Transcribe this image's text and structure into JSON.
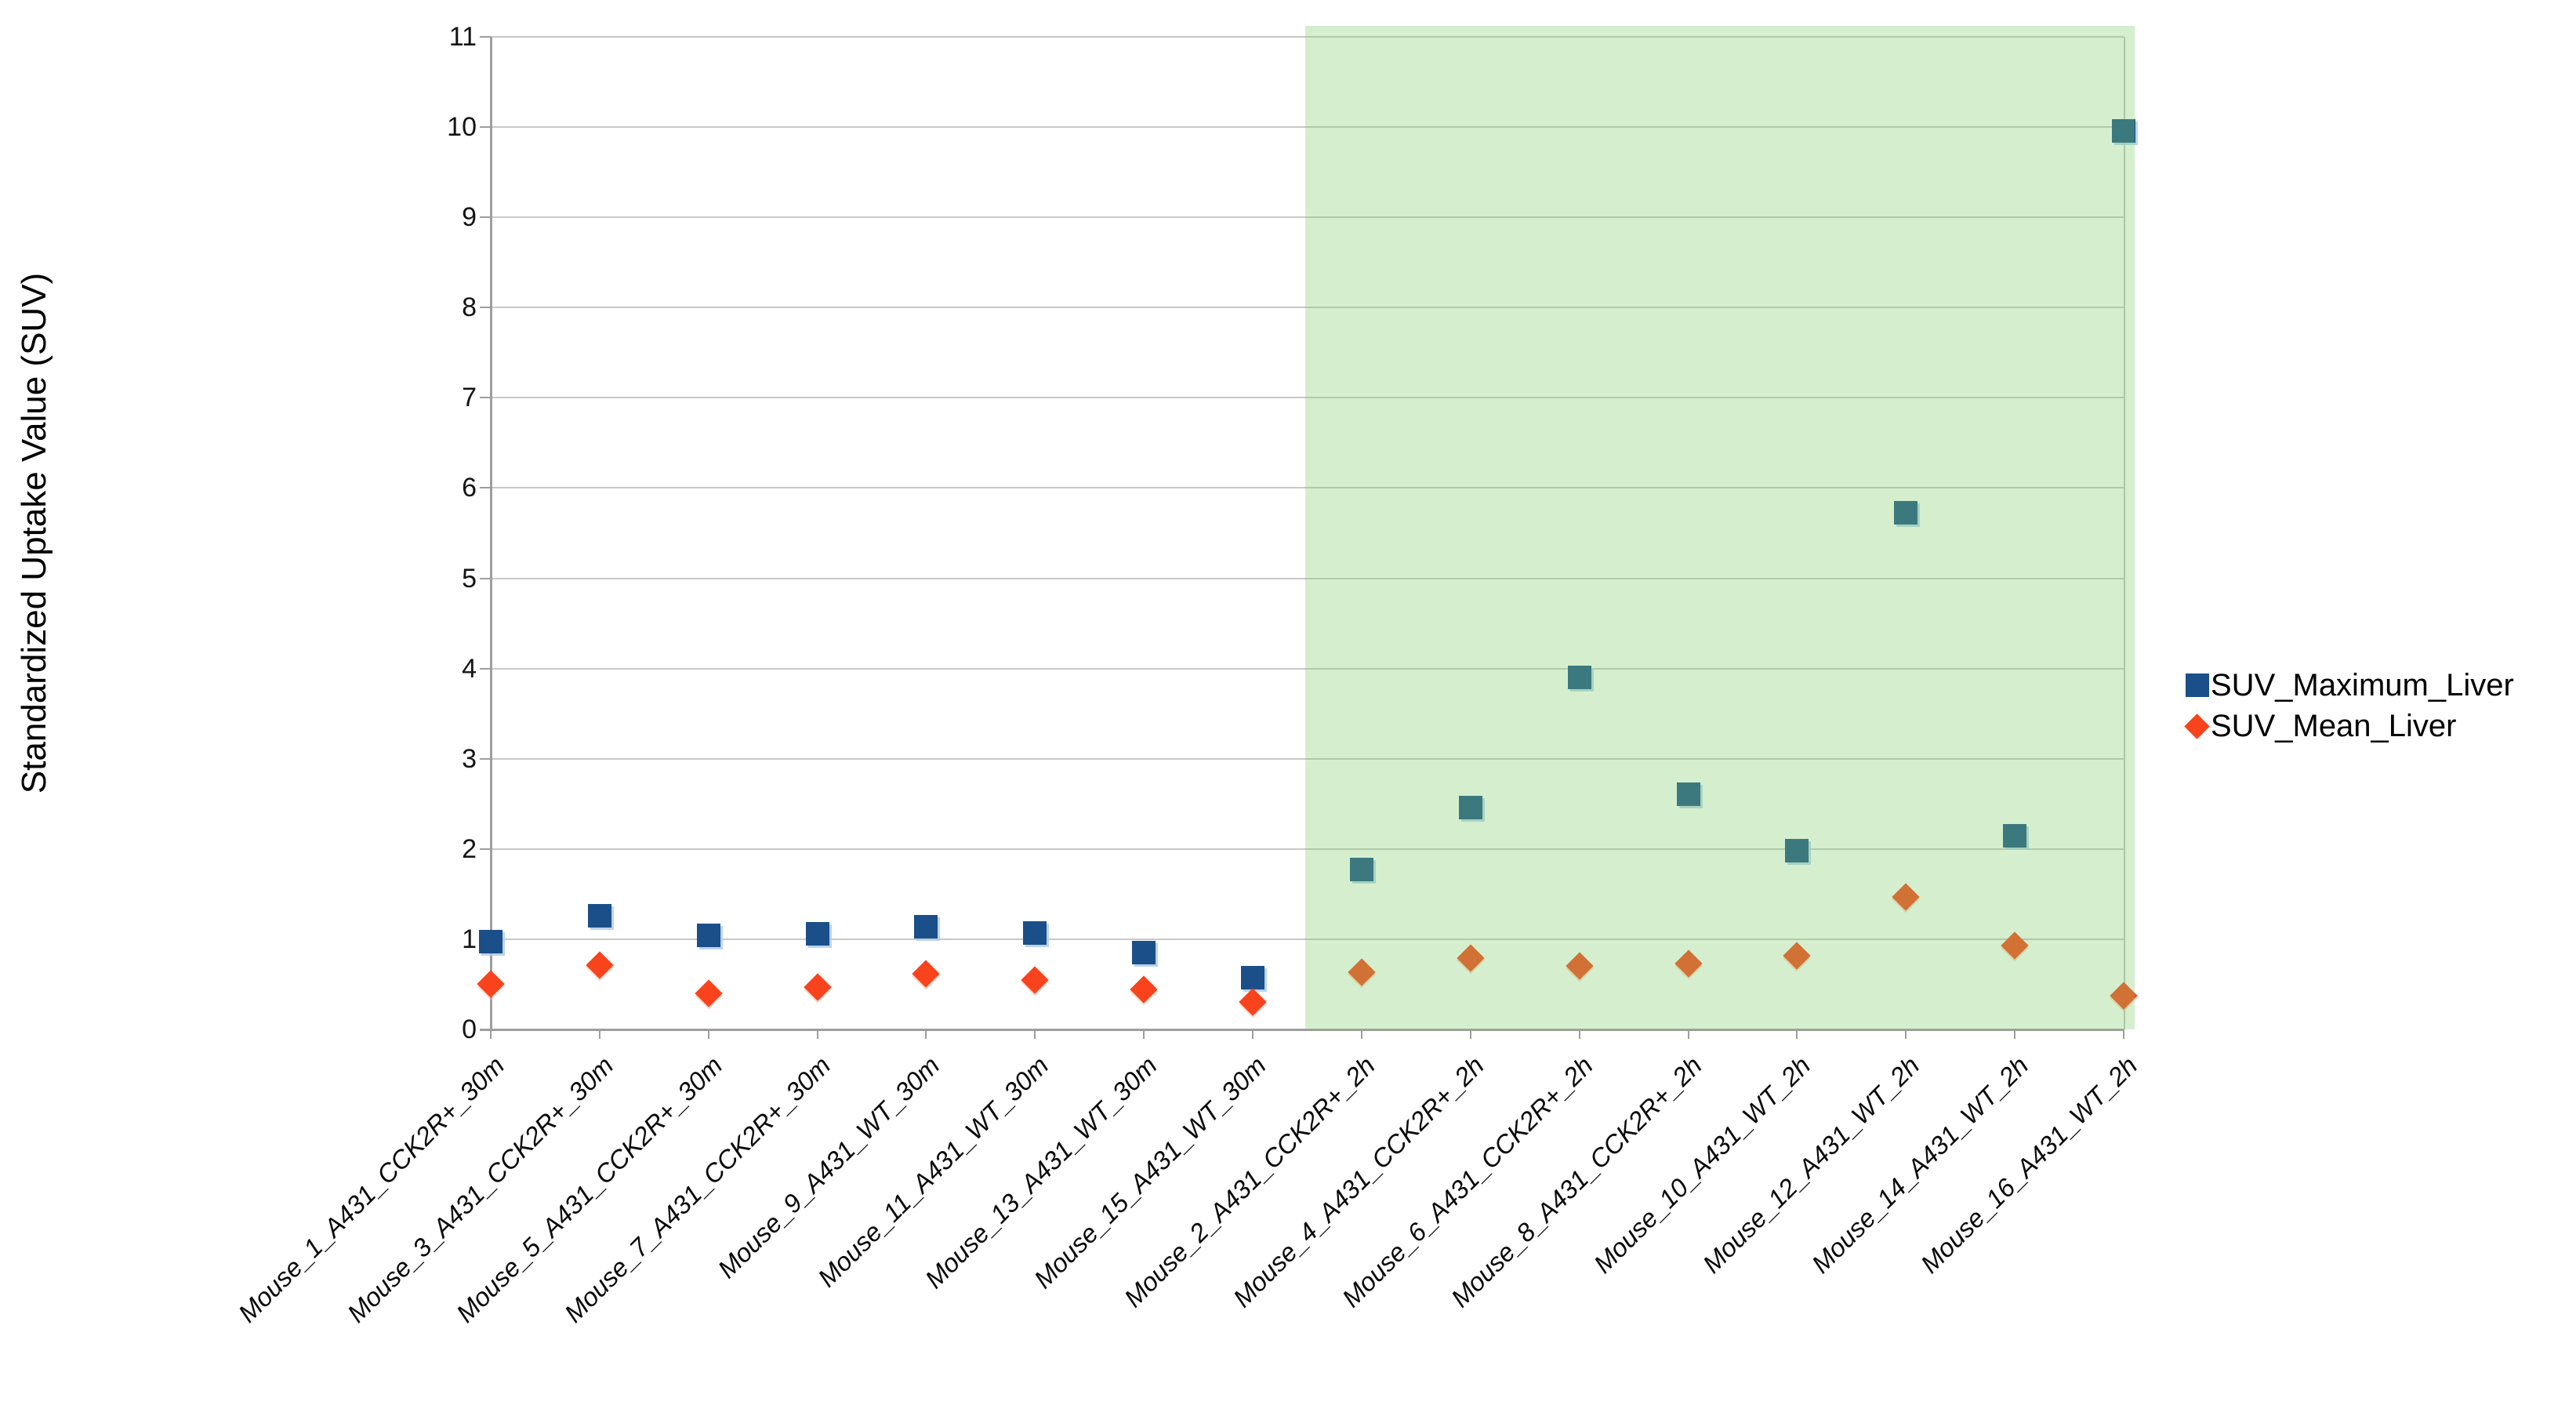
{
  "y_axis": {
    "title": "Standardized Uptake Value (SUV)",
    "min": 0,
    "max": 11,
    "tick_step": 1,
    "tick_labels": [
      "0",
      "1",
      "2",
      "3",
      "4",
      "5",
      "6",
      "7",
      "8",
      "9",
      "10",
      "11"
    ]
  },
  "x_axis": {
    "categories": [
      "Mouse_1_A431_CCK2R+_30m",
      "Mouse_3_A431_CCK2R+_30m",
      "Mouse_5_A431_CCK2R+_30m",
      "Mouse_7_A431_CCK2R+_30m",
      "Mouse_9_A431_WT_30m",
      "Mouse_11_A431_WT_30m",
      "Mouse_13_A431_WT_30m",
      "Mouse_15_A431_WT_30m",
      "Mouse_2_A431_CCK2R+_2h",
      "Mouse_4_A431_CCK2R+_2h",
      "Mouse_6_A431_CCK2R+_2h",
      "Mouse_8_A431_CCK2R+_2h",
      "Mouse_10_A431_WT_2h",
      "Mouse_12_A431_WT_2h",
      "Mouse_14_A431_WT_2h",
      "Mouse_16_A431_WT_2h"
    ]
  },
  "legend": {
    "position": "right",
    "items": [
      {
        "label": "SUV_Maximum_Liver",
        "marker": "square",
        "color": "#1b4f8a"
      },
      {
        "label": "SUV_Mean_Liver",
        "marker": "diamond",
        "color": "#f9431c"
      }
    ]
  },
  "highlight_band": {
    "covers_categories": [
      "Mouse_2_A431_CCK2R+_2h",
      "Mouse_4_A431_CCK2R+_2h",
      "Mouse_6_A431_CCK2R+_2h",
      "Mouse_8_A431_CCK2R+_2h",
      "Mouse_10_A431_WT_2h",
      "Mouse_12_A431_WT_2h",
      "Mouse_14_A431_WT_2h",
      "Mouse_16_A431_WT_2h"
    ],
    "color": "#80ce6a",
    "opacity": 0.33
  },
  "chart_data": {
    "type": "scatter",
    "title": "",
    "xlabel": "",
    "ylabel": "Standardized Uptake Value (SUV)",
    "ylim": [
      0,
      11
    ],
    "grid": true,
    "legend_position": "right",
    "categories": [
      "Mouse_1_A431_CCK2R+_30m",
      "Mouse_3_A431_CCK2R+_30m",
      "Mouse_5_A431_CCK2R+_30m",
      "Mouse_7_A431_CCK2R+_30m",
      "Mouse_9_A431_WT_30m",
      "Mouse_11_A431_WT_30m",
      "Mouse_13_A431_WT_30m",
      "Mouse_15_A431_WT_30m",
      "Mouse_2_A431_CCK2R+_2h",
      "Mouse_4_A431_CCK2R+_2h",
      "Mouse_6_A431_CCK2R+_2h",
      "Mouse_8_A431_CCK2R+_2h",
      "Mouse_10_A431_WT_2h",
      "Mouse_12_A431_WT_2h",
      "Mouse_14_A431_WT_2h",
      "Mouse_16_A431_WT_2h"
    ],
    "series": [
      {
        "name": "SUV_Maximum_Liver",
        "marker": "square",
        "color": "#1b4f8a",
        "values": [
          0.97,
          1.26,
          1.04,
          1.06,
          1.14,
          1.07,
          0.85,
          0.57,
          1.77,
          2.46,
          3.9,
          2.61,
          1.98,
          5.73,
          2.15,
          9.96
        ]
      },
      {
        "name": "SUV_Mean_Liver",
        "marker": "diamond",
        "color": "#f9431c",
        "values": [
          0.5,
          0.71,
          0.4,
          0.47,
          0.62,
          0.55,
          0.44,
          0.3,
          0.63,
          0.79,
          0.7,
          0.73,
          0.82,
          1.47,
          0.93,
          0.37
        ]
      }
    ]
  }
}
